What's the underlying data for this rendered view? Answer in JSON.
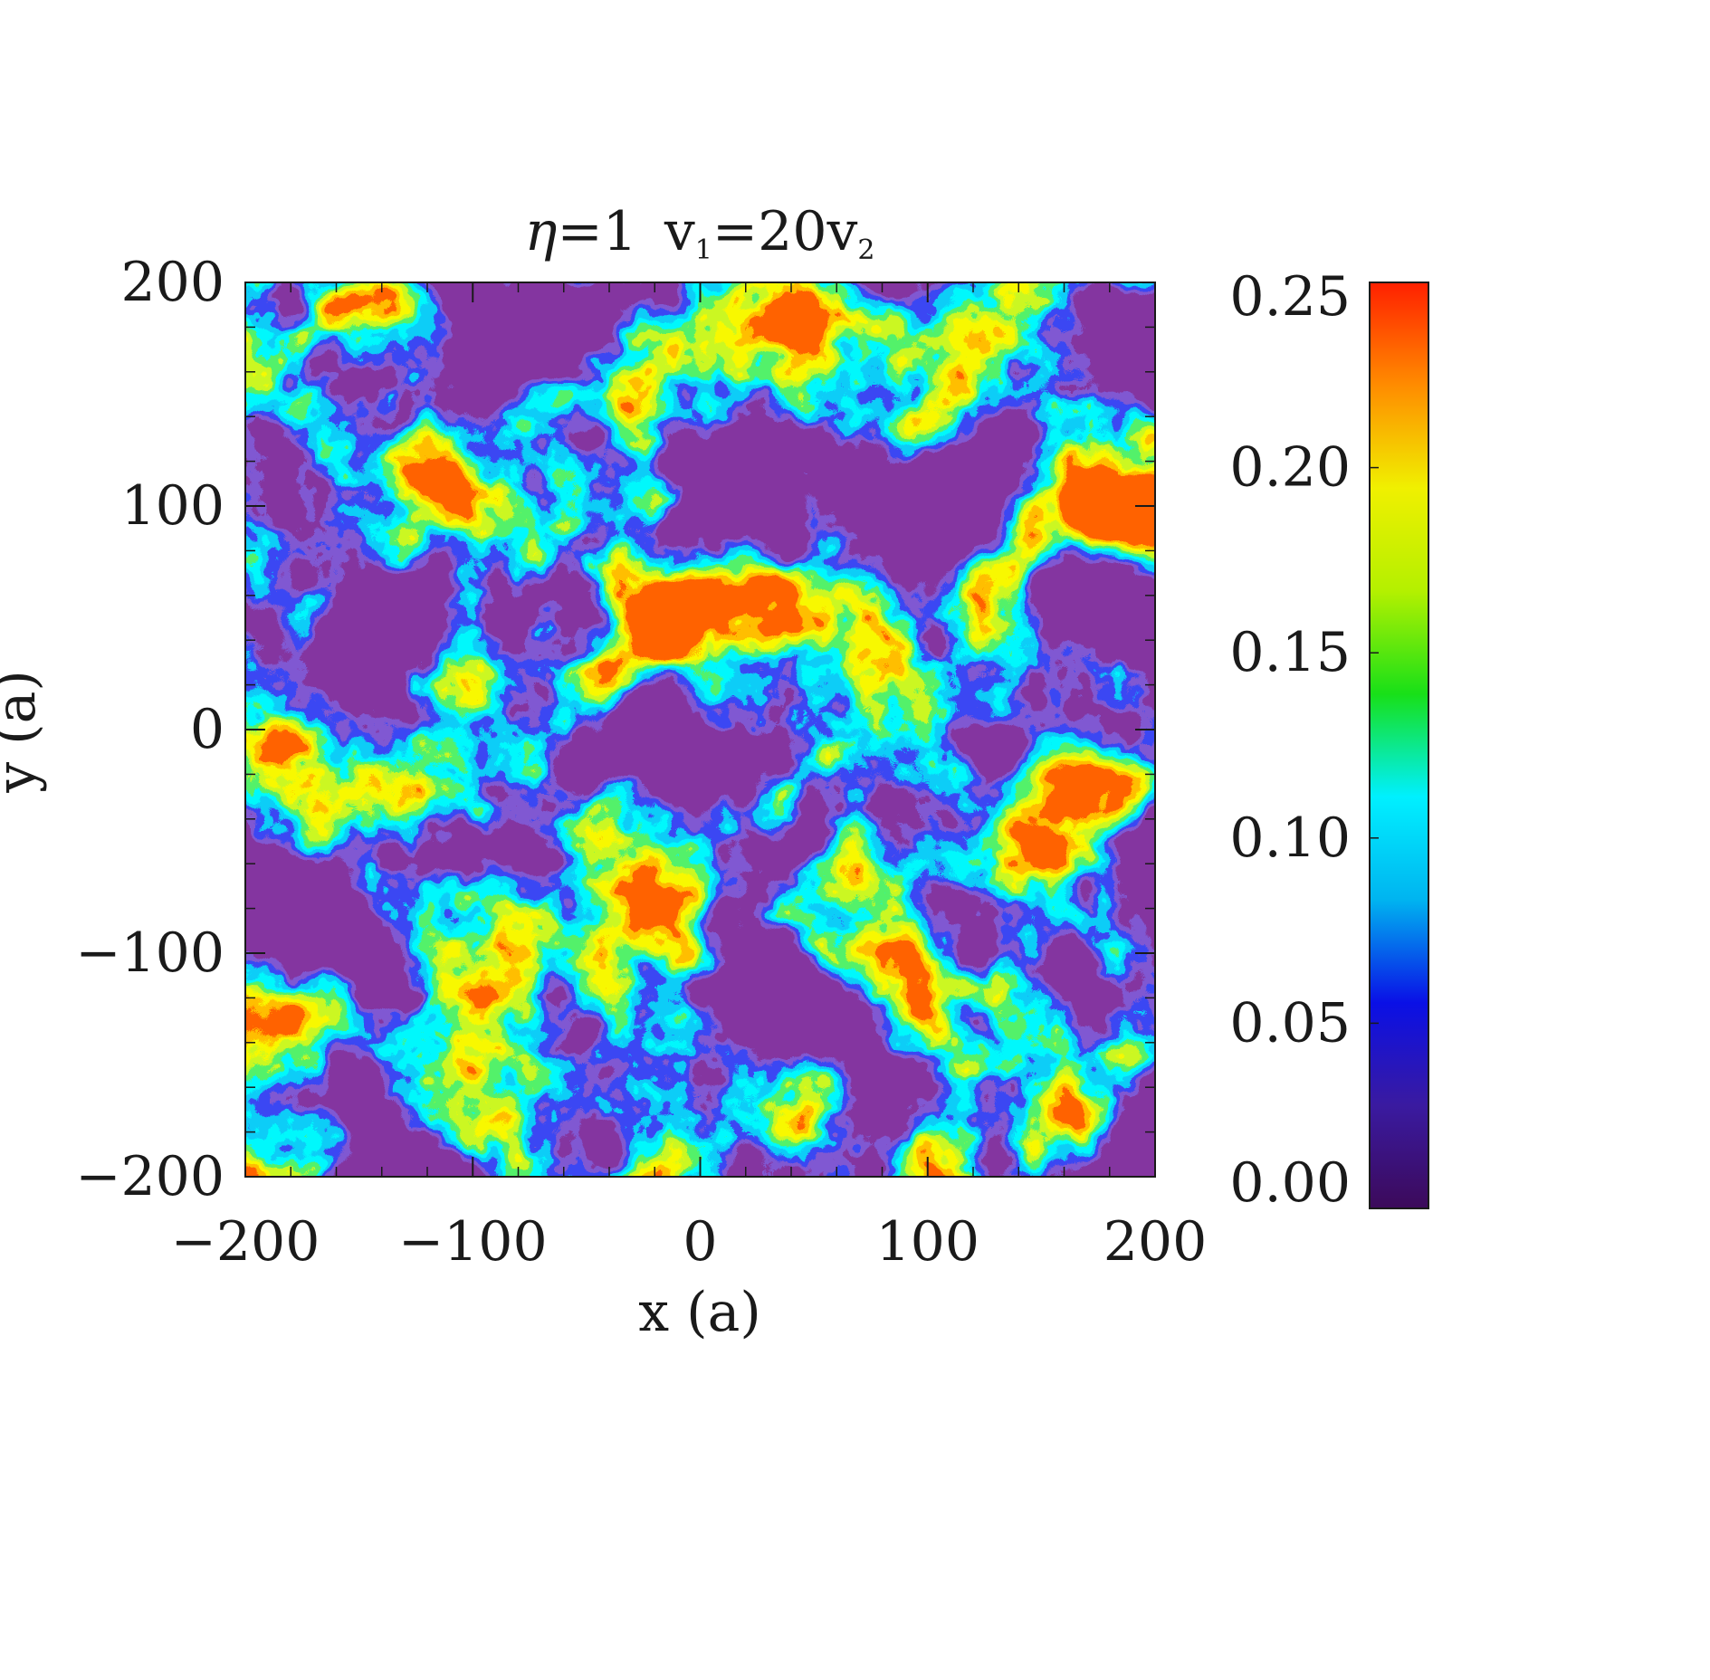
{
  "chart_data": {
    "type": "heatmap",
    "title": "η=1  v₁=20v₂",
    "title_parts": {
      "eta": "η",
      "eq1": "=1",
      "v": "v",
      "sub1": "1",
      "eq2": "=20v",
      "sub2": "2"
    },
    "xlabel": "x (a)",
    "ylabel": "y (a)",
    "xlim": [
      -200,
      200
    ],
    "ylim": [
      -200,
      200
    ],
    "x_ticks": [
      -200,
      -100,
      0,
      100,
      200
    ],
    "y_ticks": [
      -200,
      -100,
      0,
      100,
      200
    ],
    "x_tick_labels": [
      "−200",
      "−100",
      "0",
      "100",
      "200"
    ],
    "y_tick_labels": [
      "−200",
      "−100",
      "0",
      "100",
      "200"
    ],
    "colorbar": {
      "range": [
        0.0,
        0.25
      ],
      "ticks": [
        0.0,
        0.05,
        0.1,
        0.15,
        0.2,
        0.25
      ],
      "tick_labels": [
        "0.00",
        "0.05",
        "0.10",
        "0.15",
        "0.20",
        "0.25"
      ],
      "colormap": [
        "#3c0a5a",
        "#3a1aa0",
        "#0a10e6",
        "#00b4f0",
        "#00f0ff",
        "#18e018",
        "#b4f000",
        "#f0f000",
        "#ff8c00",
        "#ff2000"
      ]
    },
    "grid": false
  }
}
